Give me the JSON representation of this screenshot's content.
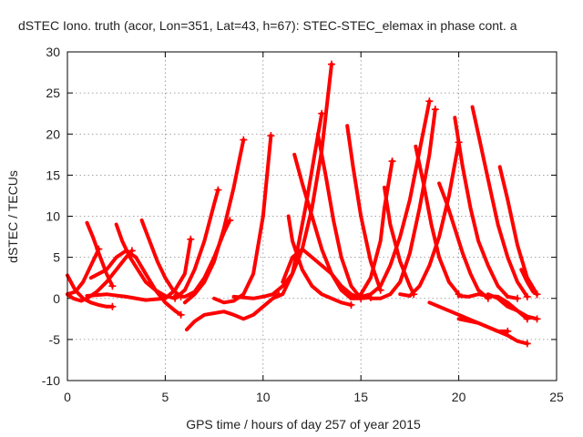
{
  "chart_data": {
    "type": "line",
    "title": "dSTEC Iono. truth (acor, Lon=351, Lat=43, h=67): STEC-STEC_elemax in phase cont. a",
    "xlabel": "GPS time / hours of day 257 of year 2015",
    "ylabel": "dSTEC  / TECUs",
    "xlim": [
      0,
      25
    ],
    "ylim": [
      -10,
      30
    ],
    "xticks": [
      0,
      5,
      10,
      15,
      20,
      25
    ],
    "yticks": [
      -10,
      -5,
      0,
      5,
      10,
      15,
      20,
      25,
      30
    ],
    "grid": true,
    "color": "#ff0000",
    "series": [
      {
        "x": [
          0.0,
          0.4,
          0.8,
          1.2,
          1.6,
          2.0,
          2.3
        ],
        "y": [
          2.8,
          1.0,
          0.0,
          -0.5,
          -0.8,
          -1.0,
          -1.0
        ]
      },
      {
        "x": [
          0.0,
          0.3,
          0.7,
          1.0,
          1.5,
          2.0,
          2.5,
          3.0,
          3.3
        ],
        "y": [
          0.5,
          0.0,
          -0.3,
          0.0,
          0.8,
          2.0,
          3.5,
          5.0,
          5.8
        ]
      },
      {
        "x": [
          1.0,
          1.3,
          1.6,
          2.0,
          2.3
        ],
        "y": [
          9.2,
          7.5,
          5.5,
          3.0,
          1.5
        ]
      },
      {
        "x": [
          0.0,
          0.4,
          0.8,
          1.2,
          1.6
        ],
        "y": [
          0.5,
          0.8,
          2.0,
          4.0,
          6.0
        ]
      },
      {
        "x": [
          1.2,
          2.0,
          2.5,
          3.0,
          3.5,
          4.0,
          4.5,
          5.0,
          5.5,
          5.8
        ],
        "y": [
          2.5,
          3.5,
          5.0,
          5.8,
          5.0,
          3.0,
          1.0,
          -0.5,
          -1.5,
          -2.0
        ]
      },
      {
        "x": [
          2.5,
          2.8,
          3.2,
          3.6,
          4.0,
          4.5,
          5.0,
          5.5
        ],
        "y": [
          9.0,
          7.0,
          5.0,
          3.5,
          2.0,
          1.0,
          0.3,
          0.0
        ]
      },
      {
        "x": [
          3.8,
          4.2,
          4.6,
          5.0,
          5.4,
          5.8
        ],
        "y": [
          9.5,
          7.0,
          4.5,
          2.5,
          1.0,
          0.2
        ]
      },
      {
        "x": [
          1.0,
          2.0,
          3.0,
          4.0,
          5.0,
          5.5,
          6.0,
          6.3
        ],
        "y": [
          0.3,
          0.5,
          0.2,
          -0.2,
          0.0,
          1.0,
          3.0,
          7.2
        ]
      },
      {
        "x": [
          5.5,
          6.0,
          6.5,
          7.0,
          7.5,
          7.7
        ],
        "y": [
          0.0,
          1.0,
          3.5,
          7.0,
          11.5,
          13.2
        ]
      },
      {
        "x": [
          6.0,
          6.5,
          7.0,
          7.5,
          8.0,
          8.5,
          8.8,
          9.0
        ],
        "y": [
          -0.5,
          0.5,
          2.0,
          4.5,
          8.5,
          13.5,
          17.0,
          19.3
        ]
      },
      {
        "x": [
          5.5,
          6.0,
          6.5,
          7.0,
          7.5,
          8.0,
          8.3
        ],
        "y": [
          0.3,
          0.2,
          0.8,
          2.5,
          5.0,
          8.0,
          9.5
        ]
      },
      {
        "x": [
          6.1,
          6.5,
          7.0,
          7.5,
          8.0,
          8.5,
          9.0,
          9.5,
          10.0,
          10.5,
          10.8
        ],
        "y": [
          -3.8,
          -2.8,
          -2.0,
          -1.8,
          -1.6,
          -2.0,
          -2.5,
          -2.0,
          -1.0,
          0.0,
          0.5
        ]
      },
      {
        "x": [
          7.5,
          8.0,
          8.5,
          9.0,
          9.5,
          10.0,
          10.4
        ],
        "y": [
          0.0,
          -0.5,
          -0.3,
          0.5,
          3.0,
          10.0,
          19.8
        ]
      },
      {
        "x": [
          8.5,
          9.0,
          9.5,
          10.0,
          10.5,
          11.0,
          11.5,
          12.0,
          12.5,
          13.0,
          13.5
        ],
        "y": [
          0.2,
          0.1,
          0.0,
          0.2,
          0.5,
          1.5,
          3.0,
          6.0,
          11.0,
          18.0,
          28.5
        ]
      },
      {
        "x": [
          10.5,
          11.0,
          11.5,
          11.8,
          12.2,
          12.6,
          13.0
        ],
        "y": [
          0.0,
          0.5,
          3.0,
          6.5,
          11.5,
          17.0,
          22.5
        ]
      },
      {
        "x": [
          11.0,
          11.5,
          12.0,
          12.5,
          13.0,
          13.5,
          14.0,
          14.5,
          15.0,
          15.5
        ],
        "y": [
          2.0,
          5.0,
          6.0,
          5.0,
          4.0,
          3.0,
          1.5,
          0.5,
          0.0,
          0.1
        ]
      },
      {
        "x": [
          11.3,
          11.5,
          12.0,
          12.5,
          13.0,
          13.5,
          14.0,
          14.5
        ],
        "y": [
          10.0,
          7.0,
          3.5,
          1.5,
          0.5,
          0.0,
          -0.5,
          -0.8
        ]
      },
      {
        "x": [
          11.6,
          12.0,
          12.5,
          13.0,
          13.5,
          14.0,
          14.5,
          15.0
        ],
        "y": [
          17.5,
          14.0,
          10.0,
          6.0,
          3.0,
          1.0,
          0.0,
          0.0
        ]
      },
      {
        "x": [
          12.8,
          13.2,
          13.6,
          14.0,
          14.5,
          15.0
        ],
        "y": [
          20.0,
          15.0,
          9.5,
          5.0,
          1.5,
          0.0
        ]
      },
      {
        "x": [
          14.3,
          14.6,
          15.0,
          15.5,
          16.0
        ],
        "y": [
          21.0,
          16.0,
          10.0,
          4.5,
          1.0
        ]
      },
      {
        "x": [
          14.5,
          15.0,
          15.5,
          16.0,
          16.2,
          16.6
        ],
        "y": [
          0.0,
          0.5,
          2.5,
          7.0,
          11.0,
          16.7
        ]
      },
      {
        "x": [
          15.0,
          15.5,
          16.0,
          16.5,
          17.0,
          17.5,
          18.0,
          18.5
        ],
        "y": [
          0.2,
          0.5,
          1.5,
          4.0,
          7.5,
          12.0,
          18.0,
          24.0
        ]
      },
      {
        "x": [
          16.2,
          16.5,
          17.0,
          17.5,
          17.7
        ],
        "y": [
          13.5,
          9.0,
          4.5,
          1.5,
          0.5
        ]
      },
      {
        "x": [
          15.5,
          16.0,
          16.5,
          17.0,
          17.5,
          18.0,
          18.5,
          18.8
        ],
        "y": [
          0.0,
          0.0,
          0.5,
          2.0,
          5.5,
          11.0,
          17.5,
          23.0
        ]
      },
      {
        "x": [
          17.0,
          17.5,
          18.0,
          18.5,
          19.0,
          19.5,
          20.0
        ],
        "y": [
          0.5,
          0.3,
          1.5,
          4.0,
          7.5,
          12.5,
          19.0
        ]
      },
      {
        "x": [
          17.8,
          18.2,
          18.6,
          19.0,
          19.5,
          20.0
        ],
        "y": [
          18.5,
          14.0,
          9.0,
          5.0,
          2.0,
          0.5
        ]
      },
      {
        "x": [
          19.0,
          19.4,
          19.8,
          20.2,
          20.6,
          21.0,
          21.5
        ],
        "y": [
          14.0,
          11.5,
          8.5,
          5.5,
          3.0,
          1.0,
          0.0
        ]
      },
      {
        "x": [
          19.8,
          20.2,
          20.6,
          21.0,
          21.5,
          22.0,
          22.5,
          23.0
        ],
        "y": [
          22.0,
          16.0,
          11.0,
          7.0,
          4.0,
          1.5,
          0.2,
          0.0
        ]
      },
      {
        "x": [
          20.7,
          21.0,
          21.5,
          22.0,
          22.5,
          23.0,
          23.5
        ],
        "y": [
          23.3,
          20.0,
          14.5,
          9.0,
          5.0,
          2.0,
          0.2
        ]
      },
      {
        "x": [
          22.1,
          22.5,
          23.0,
          23.5,
          24.0
        ],
        "y": [
          16.0,
          12.0,
          6.5,
          2.5,
          0.5
        ]
      },
      {
        "x": [
          20.0,
          20.5,
          21.0,
          21.5,
          22.0,
          22.5,
          23.0,
          23.5,
          24.0
        ],
        "y": [
          0.3,
          0.2,
          0.5,
          0.3,
          0.2,
          -0.5,
          -1.5,
          -2.2,
          -2.5
        ]
      },
      {
        "x": [
          18.5,
          19.0,
          19.5,
          20.0,
          20.5,
          21.0,
          21.5,
          22.0,
          22.5
        ],
        "y": [
          -0.5,
          -1.0,
          -1.5,
          -2.0,
          -2.5,
          -3.0,
          -3.5,
          -4.0,
          -4.0
        ]
      },
      {
        "x": [
          20.0,
          21.0,
          21.5,
          22.0,
          22.5,
          23.0,
          23.5
        ],
        "y": [
          -2.5,
          -3.0,
          -3.5,
          -4.0,
          -4.5,
          -5.2,
          -5.5
        ]
      },
      {
        "x": [
          21.5,
          22.0,
          22.5,
          23.0,
          23.5
        ],
        "y": [
          0.5,
          0.0,
          -1.0,
          -1.5,
          -2.5
        ]
      },
      {
        "x": [
          23.2,
          23.5,
          23.8,
          24.0
        ],
        "y": [
          3.5,
          2.0,
          0.8,
          0.5
        ]
      }
    ]
  }
}
